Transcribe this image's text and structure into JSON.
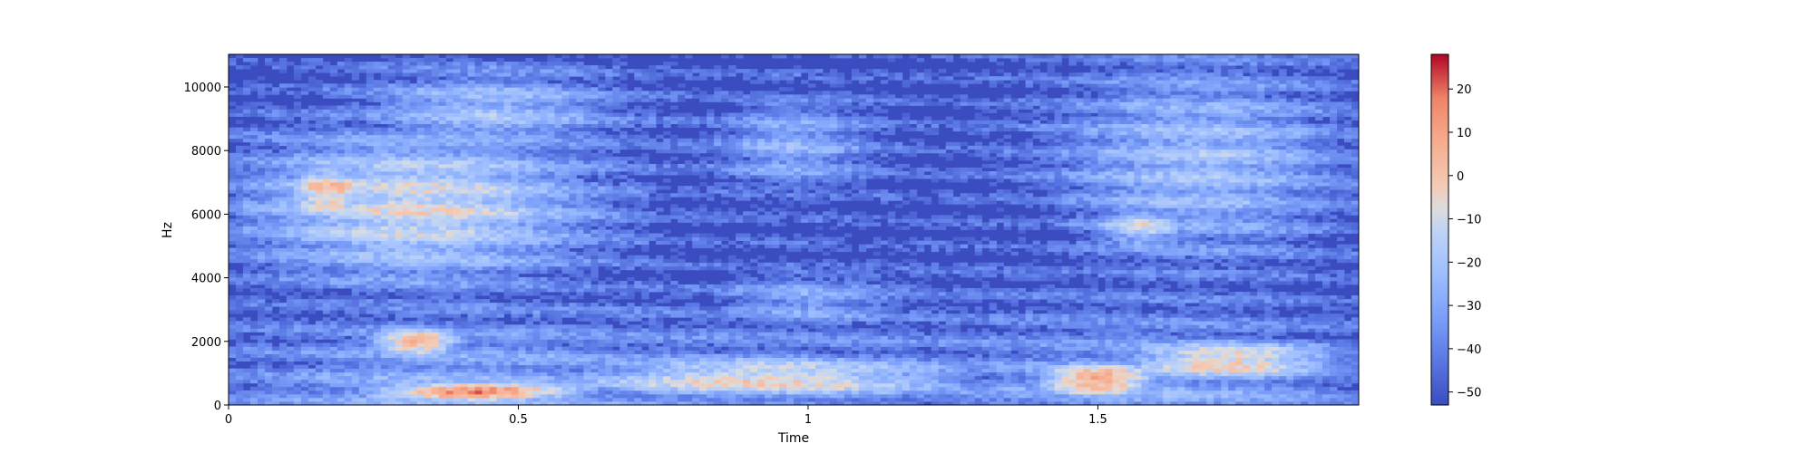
{
  "chart_data": {
    "type": "heatmap",
    "xlabel": "Time",
    "ylabel": "Hz",
    "xlim": [
      0,
      1.95
    ],
    "ylim": [
      0,
      11025
    ],
    "x_ticks": [
      {
        "value": 0,
        "label": "0"
      },
      {
        "value": 0.5,
        "label": "0.5"
      },
      {
        "value": 1,
        "label": "1"
      },
      {
        "value": 1.5,
        "label": "1.5"
      }
    ],
    "y_ticks": [
      {
        "value": 0,
        "label": "0"
      },
      {
        "value": 2000,
        "label": "2000"
      },
      {
        "value": 4000,
        "label": "4000"
      },
      {
        "value": 6000,
        "label": "6000"
      },
      {
        "value": 8000,
        "label": "8000"
      },
      {
        "value": 10000,
        "label": "10000"
      }
    ],
    "colorbar": {
      "colormap": "coolwarm",
      "range": [
        -53,
        28
      ],
      "ticks": [
        {
          "value": 20,
          "label": "20"
        },
        {
          "value": 10,
          "label": "10"
        },
        {
          "value": 0,
          "label": "0"
        },
        {
          "value": -10,
          "label": "−10"
        },
        {
          "value": -20,
          "label": "−20"
        },
        {
          "value": -30,
          "label": "−30"
        },
        {
          "value": -40,
          "label": "−40"
        },
        {
          "value": -50,
          "label": "−50"
        }
      ]
    },
    "energy_regions": [
      {
        "t": [
          0.05,
          0.6
        ],
        "f": [
          4000,
          8500
        ],
        "db": -10
      },
      {
        "t": [
          0.1,
          0.25
        ],
        "f": [
          5800,
          7600
        ],
        "db": 0
      },
      {
        "t": [
          0.25,
          0.65
        ],
        "f": [
          8000,
          10500
        ],
        "db": -22
      },
      {
        "t": [
          0.25,
          0.4
        ],
        "f": [
          1600,
          2400
        ],
        "db": 8
      },
      {
        "t": [
          0.25,
          0.6
        ],
        "f": [
          150,
          700
        ],
        "db": 22
      },
      {
        "t": [
          0.6,
          1.25
        ],
        "f": [
          200,
          1500
        ],
        "db": -5
      },
      {
        "t": [
          0.85,
          1.1
        ],
        "f": [
          6800,
          9500
        ],
        "db": -28
      },
      {
        "t": [
          0.85,
          1.15
        ],
        "f": [
          2400,
          4200
        ],
        "db": -30
      },
      {
        "t": [
          1.4,
          1.6
        ],
        "f": [
          300,
          1300
        ],
        "db": 12
      },
      {
        "t": [
          1.55,
          1.9
        ],
        "f": [
          800,
          2000
        ],
        "db": 0
      },
      {
        "t": [
          1.45,
          1.9
        ],
        "f": [
          4800,
          10500
        ],
        "db": -22
      },
      {
        "t": [
          1.5,
          1.65
        ],
        "f": [
          5000,
          6200
        ],
        "db": -12
      }
    ]
  }
}
